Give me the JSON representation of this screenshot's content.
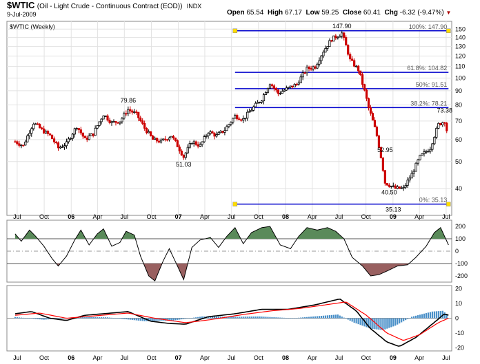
{
  "header": {
    "symbol": "$WTIC",
    "description": "(Oil - Light Crude - Continuous Contract (EOD))",
    "exchange": "INDX",
    "date": "9-Jul-2009",
    "open_label": "Open",
    "open": "65.54",
    "high_label": "High",
    "high": "67.17",
    "low_label": "Low",
    "low": "59.25",
    "close_label": "Close",
    "close": "60.41",
    "chg_label": "Chg",
    "chg": "-6.32 (-9.47%)",
    "chg_arrow": "▼"
  },
  "chart_data": [
    {
      "type": "candlestick",
      "title": "$WTIC (Weekly)",
      "scale": "log",
      "ylim": [
        32,
        160
      ],
      "y_ticks": [
        40,
        50,
        60,
        70,
        80,
        90,
        100,
        110,
        120,
        130,
        140,
        150
      ],
      "x_tick_labels": [
        "Jul",
        "Oct",
        "06",
        "Apr",
        "Jul",
        "Oct",
        "07",
        "Apr",
        "Jul",
        "Oct",
        "08",
        "Apr",
        "Jul",
        "Oct",
        "09",
        "Apr",
        "Jul"
      ],
      "up_color": "#000000",
      "down_color": "#cc0000",
      "path": [
        [
          "2005-06-24",
          59
        ],
        [
          "2005-07-22",
          57
        ],
        [
          "2005-08-26",
          69
        ],
        [
          "2005-09-23",
          65
        ],
        [
          "2005-10-21",
          62
        ],
        [
          "2005-11-18",
          56
        ],
        [
          "2005-12-16",
          58
        ],
        [
          "2006-01-20",
          67
        ],
        [
          "2006-02-17",
          60
        ],
        [
          "2006-03-17",
          63
        ],
        [
          "2006-04-21",
          74
        ],
        [
          "2006-05-19",
          69
        ],
        [
          "2006-06-16",
          70
        ],
        [
          "2006-07-14",
          77
        ],
        [
          "2006-08-11",
          74
        ],
        [
          "2006-09-08",
          66
        ],
        [
          "2006-10-06",
          60
        ],
        [
          "2006-11-03",
          59
        ],
        [
          "2006-12-08",
          62
        ],
        [
          "2007-01-19",
          52
        ],
        [
          "2007-02-16",
          59
        ],
        [
          "2007-03-16",
          57
        ],
        [
          "2007-04-13",
          64
        ],
        [
          "2007-05-11",
          62
        ],
        [
          "2007-06-08",
          65
        ],
        [
          "2007-07-13",
          73
        ],
        [
          "2007-08-10",
          71
        ],
        [
          "2007-09-07",
          77
        ],
        [
          "2007-10-12",
          84
        ],
        [
          "2007-11-09",
          96
        ],
        [
          "2007-12-07",
          88
        ],
        [
          "2008-01-11",
          92
        ],
        [
          "2008-02-08",
          95
        ],
        [
          "2008-03-14",
          108
        ],
        [
          "2008-04-11",
          110
        ],
        [
          "2008-05-09",
          125
        ],
        [
          "2008-06-06",
          138
        ],
        [
          "2008-07-11",
          145
        ],
        [
          "2008-08-08",
          116
        ],
        [
          "2008-09-05",
          107
        ],
        [
          "2008-10-10",
          78
        ],
        [
          "2008-11-07",
          62
        ],
        [
          "2008-12-05",
          42
        ],
        [
          "2009-01-09",
          40
        ],
        [
          "2009-02-06",
          40
        ],
        [
          "2009-03-06",
          45
        ],
        [
          "2009-04-03",
          52
        ],
        [
          "2009-05-08",
          56
        ],
        [
          "2009-06-05",
          68
        ],
        [
          "2009-06-26",
          70
        ],
        [
          "2009-07-09",
          60.41
        ]
      ],
      "annotations": [
        {
          "text": "79.86",
          "date": "2006-07-14",
          "value": 79.86
        },
        {
          "text": "51.03",
          "date": "2007-01-19",
          "value": 51.03
        },
        {
          "text": "147.90",
          "date": "2008-07-11",
          "value": 147.9
        },
        {
          "text": "52.95",
          "date": "2008-12-05",
          "value": 52.95
        },
        {
          "text": "40.50",
          "date": "2008-12-19",
          "value": 40.5
        },
        {
          "text": "35.13",
          "date": "2009-01-02",
          "value": 35.13
        },
        {
          "text": "73.38",
          "date": "2009-06-26",
          "value": 73.38
        }
      ],
      "fibonacci": {
        "start_date": "2007-07-13",
        "end_date": "2009-07-09",
        "levels": [
          {
            "label": "100%: 147.90",
            "value": 147.9
          },
          {
            "label": "61.8%: 104.82",
            "value": 104.82
          },
          {
            "label": "50%: 91.51",
            "value": 91.51
          },
          {
            "label": "38.2%: 78.21",
            "value": 78.21
          },
          {
            "label": "0%: 35.13",
            "value": 35.13
          }
        ],
        "line_color": "#0000cc",
        "anchor_color": "#ffdd00"
      }
    },
    {
      "type": "area",
      "indicator": "CCI",
      "ylim": [
        -250,
        250
      ],
      "y_ticks": [
        200,
        100,
        0,
        -100,
        -200
      ],
      "reference_lines": [
        100,
        0,
        -100
      ],
      "positive_fill": "#5a8a5a",
      "negative_fill": "#996060",
      "path": [
        [
          "2005-06-24",
          140
        ],
        [
          "2005-07-15",
          80
        ],
        [
          "2005-08-12",
          170
        ],
        [
          "2005-09-02",
          120
        ],
        [
          "2005-09-30",
          40
        ],
        [
          "2005-10-28",
          -60
        ],
        [
          "2005-11-18",
          -120
        ],
        [
          "2005-12-16",
          -40
        ],
        [
          "2006-01-13",
          90
        ],
        [
          "2006-02-03",
          170
        ],
        [
          "2006-03-03",
          50
        ],
        [
          "2006-03-31",
          140
        ],
        [
          "2006-04-21",
          180
        ],
        [
          "2006-05-19",
          40
        ],
        [
          "2006-06-16",
          70
        ],
        [
          "2006-07-07",
          160
        ],
        [
          "2006-08-04",
          130
        ],
        [
          "2006-08-25",
          -40
        ],
        [
          "2006-09-22",
          -200
        ],
        [
          "2006-10-13",
          -240
        ],
        [
          "2006-11-10",
          -80
        ],
        [
          "2006-12-01",
          20
        ],
        [
          "2006-12-29",
          -120
        ],
        [
          "2007-01-19",
          -230
        ],
        [
          "2007-02-16",
          30
        ],
        [
          "2007-03-16",
          90
        ],
        [
          "2007-04-20",
          110
        ],
        [
          "2007-05-18",
          30
        ],
        [
          "2007-06-15",
          120
        ],
        [
          "2007-07-13",
          190
        ],
        [
          "2007-08-10",
          60
        ],
        [
          "2007-09-07",
          150
        ],
        [
          "2007-10-12",
          190
        ],
        [
          "2007-11-09",
          200
        ],
        [
          "2007-12-14",
          50
        ],
        [
          "2008-01-18",
          20
        ],
        [
          "2008-02-15",
          120
        ],
        [
          "2008-03-14",
          190
        ],
        [
          "2008-04-18",
          170
        ],
        [
          "2008-05-23",
          190
        ],
        [
          "2008-06-20",
          160
        ],
        [
          "2008-07-18",
          100
        ],
        [
          "2008-08-15",
          -50
        ],
        [
          "2008-09-19",
          -120
        ],
        [
          "2008-10-17",
          -200
        ],
        [
          "2008-11-14",
          -190
        ],
        [
          "2008-12-12",
          -160
        ],
        [
          "2009-01-16",
          -120
        ],
        [
          "2009-02-20",
          -110
        ],
        [
          "2009-03-20",
          -50
        ],
        [
          "2009-04-24",
          40
        ],
        [
          "2009-05-22",
          150
        ],
        [
          "2009-06-12",
          190
        ],
        [
          "2009-07-09",
          50
        ]
      ]
    },
    {
      "type": "line",
      "indicator": "MACD",
      "ylim": [
        -22,
        22
      ],
      "y_ticks": [
        20,
        10,
        0,
        -10,
        -20
      ],
      "series": [
        {
          "color": "#000000",
          "path": [
            [
              "2005-06-24",
              3
            ],
            [
              "2005-08-19",
              4.5
            ],
            [
              "2005-10-21",
              0
            ],
            [
              "2005-12-16",
              -1.5
            ],
            [
              "2006-02-17",
              2
            ],
            [
              "2006-04-21",
              3
            ],
            [
              "2006-07-14",
              4.5
            ],
            [
              "2006-09-29",
              -2
            ],
            [
              "2006-12-01",
              -3.5
            ],
            [
              "2007-01-26",
              -4
            ],
            [
              "2007-04-13",
              1
            ],
            [
              "2007-07-13",
              3
            ],
            [
              "2007-10-12",
              6
            ],
            [
              "2008-01-11",
              6
            ],
            [
              "2008-04-11",
              9
            ],
            [
              "2008-07-04",
              13
            ],
            [
              "2008-08-29",
              5
            ],
            [
              "2008-10-17",
              -7
            ],
            [
              "2008-12-12",
              -16
            ],
            [
              "2009-01-23",
              -19
            ],
            [
              "2009-03-20",
              -13
            ],
            [
              "2009-05-15",
              -4
            ],
            [
              "2009-06-26",
              3
            ],
            [
              "2009-07-09",
              2
            ]
          ]
        },
        {
          "color": "#ff0000",
          "path": [
            [
              "2005-06-24",
              2
            ],
            [
              "2005-09-16",
              3.5
            ],
            [
              "2005-12-16",
              0
            ],
            [
              "2006-03-17",
              1.5
            ],
            [
              "2006-07-14",
              3.5
            ],
            [
              "2006-10-13",
              0
            ],
            [
              "2007-01-26",
              -3
            ],
            [
              "2007-04-20",
              -1
            ],
            [
              "2007-08-10",
              2.5
            ],
            [
              "2007-11-16",
              5
            ],
            [
              "2008-02-15",
              6.5
            ],
            [
              "2008-05-16",
              9
            ],
            [
              "2008-07-25",
              11
            ],
            [
              "2008-10-03",
              2
            ],
            [
              "2008-12-12",
              -10
            ],
            [
              "2009-02-06",
              -15
            ],
            [
              "2009-04-03",
              -11
            ],
            [
              "2009-06-05",
              -3
            ],
            [
              "2009-07-09",
              0
            ]
          ]
        }
      ],
      "histogram": {
        "color": "#4a90c8",
        "path": [
          [
            "2005-06-24",
            0.8
          ],
          [
            "2005-09-30",
            -1
          ],
          [
            "2006-01-27",
            0.8
          ],
          [
            "2006-05-05",
            0.6
          ],
          [
            "2006-09-08",
            -2
          ],
          [
            "2006-12-15",
            -1.5
          ],
          [
            "2007-03-23",
            1.2
          ],
          [
            "2007-07-06",
            1
          ],
          [
            "2007-10-05",
            1.2
          ],
          [
            "2008-01-25",
            0
          ],
          [
            "2008-04-25",
            1.5
          ],
          [
            "2008-06-27",
            2.5
          ],
          [
            "2008-08-22",
            -3
          ],
          [
            "2008-10-17",
            -7
          ],
          [
            "2008-11-28",
            -8
          ],
          [
            "2009-01-09",
            -5
          ],
          [
            "2009-03-06",
            1
          ],
          [
            "2009-05-15",
            4.5
          ],
          [
            "2009-06-19",
            5
          ],
          [
            "2009-07-09",
            2
          ]
        ]
      }
    }
  ]
}
